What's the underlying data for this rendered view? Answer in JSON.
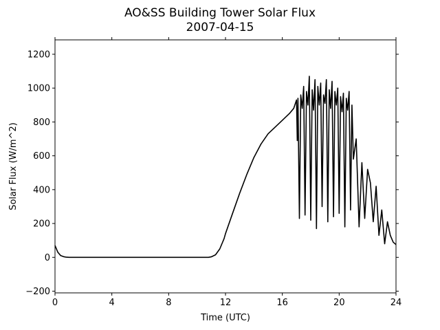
{
  "chart_data": {
    "type": "line",
    "title": "AO&SS Building Tower Solar Flux",
    "subtitle": "2007-04-15",
    "xlabel": "Time (UTC)",
    "ylabel": "Solar Flux (W/m^2)",
    "xlim": [
      0,
      24
    ],
    "ylim": [
      -210,
      1285
    ],
    "xticks": [
      0,
      4,
      8,
      12,
      16,
      20,
      24
    ],
    "xtick_labels": [
      "0",
      "4",
      "8",
      "12",
      "16",
      "20",
      "24"
    ],
    "yticks": [
      -200,
      0,
      200,
      400,
      600,
      800,
      1000,
      1200
    ],
    "ytick_labels": [
      "−200",
      "0",
      "200",
      "400",
      "600",
      "800",
      "1000",
      "1200"
    ],
    "grid": false,
    "line_color": "#000000",
    "series": [
      {
        "x": [
          0,
          0.2,
          0.4,
          0.6,
          0.8,
          1.0,
          2.0,
          4.0,
          6.0,
          8.0,
          10.0,
          10.8,
          11.0,
          11.3,
          11.6,
          11.9,
          12.0,
          12.5,
          13.0,
          13.5,
          14.0,
          14.5,
          15.0,
          15.5,
          16.0,
          16.5,
          16.8,
          17.0,
          17.05,
          17.1,
          17.2,
          17.3,
          17.4,
          17.5,
          17.6,
          17.7,
          17.8,
          17.9,
          18.0,
          18.1,
          18.2,
          18.3,
          18.4,
          18.5,
          18.6,
          18.7,
          18.8,
          18.9,
          19.0,
          19.1,
          19.2,
          19.3,
          19.4,
          19.5,
          19.6,
          19.7,
          19.8,
          19.9,
          20.0,
          20.1,
          20.2,
          20.3,
          20.4,
          20.5,
          20.6,
          20.7,
          20.8,
          20.9,
          21.0,
          21.2,
          21.4,
          21.6,
          21.8,
          22.0,
          22.2,
          22.4,
          22.6,
          22.8,
          23.0,
          23.2,
          23.4,
          23.6,
          23.8,
          24.0
        ],
        "y": [
          70,
          30,
          10,
          4,
          1,
          0,
          0,
          0,
          0,
          0,
          0,
          0,
          3,
          15,
          50,
          110,
          140,
          260,
          380,
          490,
          590,
          670,
          730,
          770,
          810,
          850,
          880,
          930,
          690,
          940,
          230,
          960,
          880,
          1010,
          250,
          980,
          900,
          1070,
          220,
          990,
          870,
          1050,
          170,
          1010,
          900,
          1030,
          300,
          960,
          910,
          1050,
          210,
          990,
          880,
          1040,
          240,
          980,
          900,
          1000,
          260,
          950,
          860,
          970,
          180,
          940,
          870,
          980,
          280,
          900,
          580,
          700,
          180,
          560,
          230,
          520,
          440,
          210,
          420,
          130,
          280,
          80,
          210,
          130,
          90,
          75
        ]
      }
    ]
  }
}
